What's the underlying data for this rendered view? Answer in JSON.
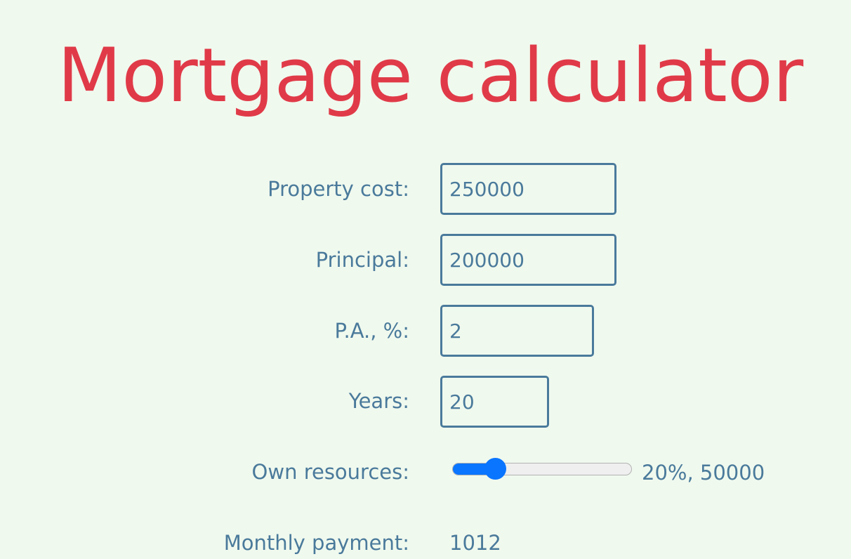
{
  "title": "Mortgage calculator",
  "form": {
    "property_cost": {
      "label": "Property cost:",
      "value": "250000"
    },
    "principal": {
      "label": "Principal:",
      "value": "200000"
    },
    "pa_percent": {
      "label": "P.A., %:",
      "value": "2"
    },
    "years": {
      "label": "Years:",
      "value": "20"
    },
    "own_resources": {
      "label": "Own resources:",
      "slider_value_percent": 20,
      "readout": "20%, 50000"
    },
    "monthly_payment": {
      "label": "Monthly payment:",
      "value": "1012"
    }
  },
  "colors": {
    "title": "#e03a48",
    "text": "#4a7a9b",
    "background": "#f0f9ee",
    "slider_accent": "#0a75ff"
  }
}
